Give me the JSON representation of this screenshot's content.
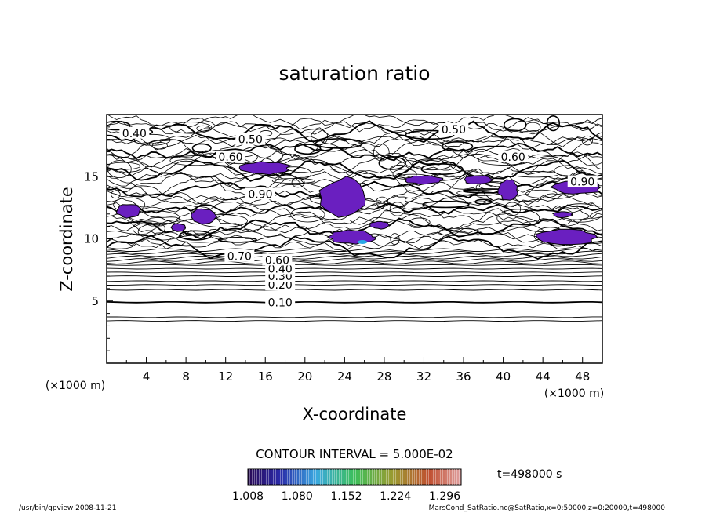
{
  "chart_data": {
    "type": "heatmap",
    "title": "saturation ratio",
    "xlabel": "X-coordinate",
    "ylabel": "Z-coordinate",
    "x_unit": "(×1000 m)",
    "z_unit": "(×1000 m)",
    "xlim": [
      0,
      50
    ],
    "ylim": [
      0,
      20
    ],
    "x_ticks": [
      "4",
      "8",
      "12",
      "16",
      "20",
      "24",
      "28",
      "32",
      "36",
      "40",
      "44",
      "48"
    ],
    "y_ticks": [
      "5",
      "10",
      "15"
    ],
    "contour_interval_text": "CONTOUR INTERVAL = 5.000E-02",
    "time_text": "t=498000 s",
    "colorbar": {
      "ticks": [
        "1.008",
        "1.080",
        "1.152",
        "1.224",
        "1.296"
      ],
      "min": 1.008,
      "max": 1.32
    },
    "contour_labels": [
      {
        "text": "0.10",
        "x": 17.5,
        "z": 4.9
      },
      {
        "text": "0.20",
        "x": 17.5,
        "z": 6.3
      },
      {
        "text": "0.30",
        "x": 17.5,
        "z": 7.0
      },
      {
        "text": "0.40",
        "x": 17.5,
        "z": 7.6
      },
      {
        "text": "0.60",
        "x": 17.2,
        "z": 8.3
      },
      {
        "text": "0.70",
        "x": 13.4,
        "z": 8.6
      },
      {
        "text": "0.40",
        "x": 2.8,
        "z": 18.5
      },
      {
        "text": "0.50",
        "x": 14.5,
        "z": 18.0
      },
      {
        "text": "0.60",
        "x": 12.5,
        "z": 16.6
      },
      {
        "text": "0.50",
        "x": 35.0,
        "z": 18.8
      },
      {
        "text": "0.60",
        "x": 41.0,
        "z": 16.6
      },
      {
        "text": "0.90",
        "x": 48.0,
        "z": 14.6
      },
      {
        "text": "0.90",
        "x": 15.5,
        "z": 13.6
      }
    ],
    "supersaturated_regions": [
      {
        "x": [
          13.5,
          18.5
        ],
        "z": [
          15.2,
          16.2
        ]
      },
      {
        "x": [
          21.5,
          26.0
        ],
        "z": [
          11.7,
          14.9
        ]
      },
      {
        "x": [
          1.0,
          3.5
        ],
        "z": [
          11.7,
          12.8
        ]
      },
      {
        "x": [
          8.5,
          11.0
        ],
        "z": [
          11.2,
          12.4
        ]
      },
      {
        "x": [
          22.5,
          27.0
        ],
        "z": [
          9.6,
          10.7
        ]
      },
      {
        "x": [
          26.5,
          28.5
        ],
        "z": [
          10.8,
          11.4
        ]
      },
      {
        "x": [
          30.0,
          34.0
        ],
        "z": [
          14.4,
          15.1
        ]
      },
      {
        "x": [
          36.0,
          39.0
        ],
        "z": [
          14.4,
          15.1
        ]
      },
      {
        "x": [
          39.5,
          41.5
        ],
        "z": [
          13.1,
          14.8
        ]
      },
      {
        "x": [
          45.0,
          50.0
        ],
        "z": [
          13.6,
          14.7
        ]
      },
      {
        "x": [
          43.0,
          49.5
        ],
        "z": [
          9.5,
          10.8
        ]
      },
      {
        "x": [
          45.0,
          47.0
        ],
        "z": [
          11.7,
          12.2
        ]
      },
      {
        "x": [
          6.5,
          8.0
        ],
        "z": [
          10.6,
          11.2
        ]
      }
    ]
  },
  "footer": {
    "left": "/usr/bin/gpview   2008-11-21",
    "right": "MarsCond_SatRatio.nc@SatRatio,x=0:50000,z=0:20000,t=498000"
  }
}
